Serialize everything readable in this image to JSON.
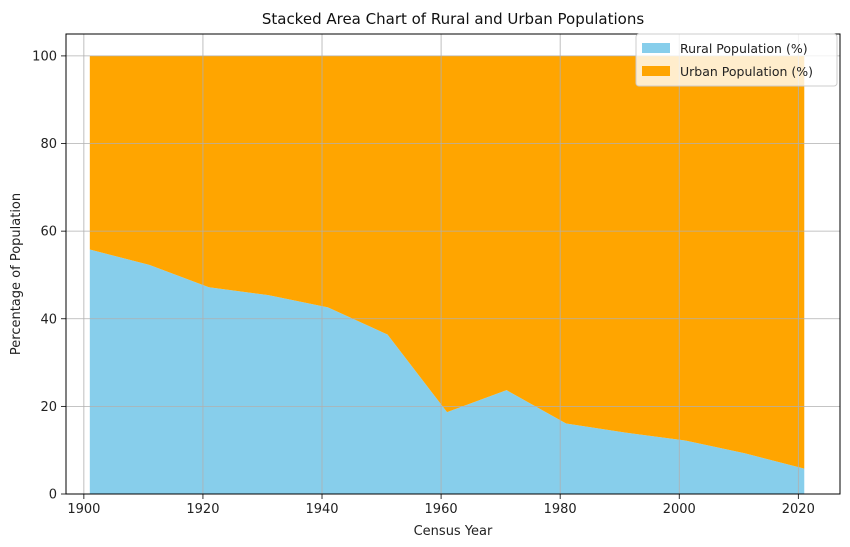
{
  "chart_data": {
    "type": "area",
    "stacked": true,
    "title": "Stacked Area Chart of Rural and Urban Populations",
    "xlabel": "Census Year",
    "ylabel": "Percentage of Population",
    "x": [
      1901,
      1911,
      1921,
      1931,
      1941,
      1951,
      1961,
      1971,
      1981,
      1991,
      2001,
      2011,
      2021
    ],
    "series": [
      {
        "name": "Rural Population (%)",
        "color": "#87CEEB",
        "values": [
          55.8,
          52.3,
          47.2,
          45.4,
          42.6,
          36.4,
          18.7,
          23.7,
          16.1,
          14.0,
          12.2,
          9.3,
          5.8
        ]
      },
      {
        "name": "Urban Population (%)",
        "color": "#FFA500",
        "values": [
          44.2,
          47.7,
          52.8,
          54.6,
          57.4,
          63.6,
          81.3,
          76.3,
          83.9,
          86.0,
          87.8,
          90.7,
          94.2
        ]
      }
    ],
    "xlim": [
      1897,
      2027
    ],
    "ylim": [
      0,
      105
    ],
    "xticks": [
      1900,
      1920,
      1940,
      1960,
      1980,
      2000,
      2020
    ],
    "yticks": [
      0,
      20,
      40,
      60,
      80,
      100
    ],
    "grid": true,
    "legend_position": "top-right"
  }
}
